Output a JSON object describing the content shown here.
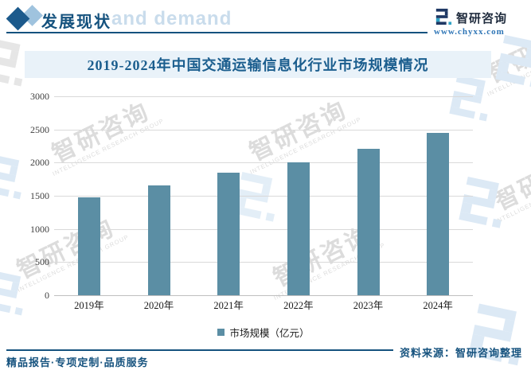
{
  "page": {
    "header": {
      "section_title": "发展现状"
    },
    "brand": {
      "name": "智研咨询",
      "url": "www.chyxx.com"
    },
    "footer": {
      "left": "精品报告·专项定制·品质服务",
      "source": "资料来源：智研咨询整理"
    },
    "watermarks": {
      "demand": "and demand",
      "brand_cn": "智研咨询",
      "brand_en": "INTELLIGENCE RESEARCH GROUP"
    }
  },
  "chart_data": {
    "type": "bar",
    "title": "2019-2024年中国交通运输信息化行业市场规模情况",
    "categories": [
      "2019年",
      "2020年",
      "2021年",
      "2022年",
      "2023年",
      "2024年"
    ],
    "series": [
      {
        "name": "市场规模（亿元）",
        "values": [
          1475,
          1655,
          1845,
          2000,
          2210,
          2450
        ]
      }
    ],
    "xlabel": "",
    "ylabel": "",
    "ylim": [
      0,
      3000
    ],
    "yticks": [
      0,
      500,
      1000,
      1500,
      2000,
      2500,
      3000
    ],
    "grid": "horizontal",
    "legend_position": "bottom",
    "bar_color": "#5B8EA4"
  },
  "colors": {
    "accent_dark_blue": "#15527E",
    "title_blue": "#1B5E8E",
    "banner_bg": "#E9F2F9",
    "bar": "#5B8EA4",
    "gridline": "#D9D9D9",
    "url_blue": "#2E75B6",
    "logo_navy": "#1F3864",
    "logo_cyan": "#31A3C6"
  }
}
